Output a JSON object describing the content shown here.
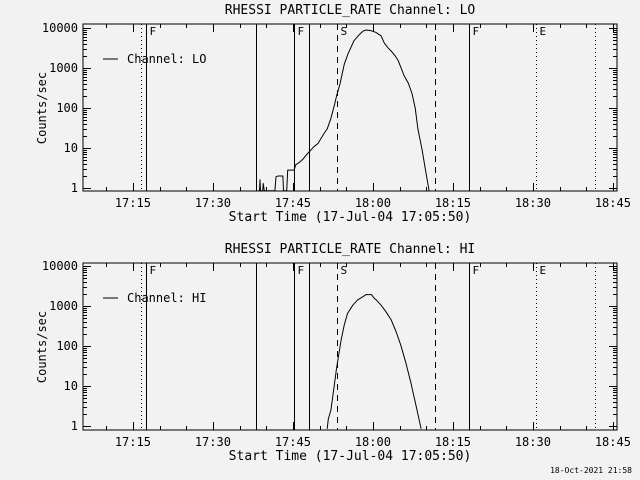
{
  "window": {
    "background_color": "#f2f2f2",
    "foreground_color": "#000000"
  },
  "footer": {
    "datestamp": "18-Oct-2021 21:58"
  },
  "chart_data": [
    {
      "type": "line",
      "title": "RHESSI PARTICLE_RATE Channel: LO",
      "xlabel": "Start Time (17-Jul-04 17:05:50)",
      "ylabel": "Counts/sec",
      "legend": {
        "label": "Channel: LO",
        "position": "upper-left"
      },
      "x_axis": {
        "start_time": "17-Jul-04 17:05:50",
        "range_minutes": [
          0,
          100
        ],
        "major_ticks": [
          {
            "t": 9.1667,
            "label": "17:15"
          },
          {
            "t": 24.1667,
            "label": "17:30"
          },
          {
            "t": 39.1667,
            "label": "17:45"
          },
          {
            "t": 54.1667,
            "label": "18:00"
          },
          {
            "t": 69.1667,
            "label": "18:15"
          },
          {
            "t": 84.1667,
            "label": "18:30"
          },
          {
            "t": 99.1667,
            "label": "18:45"
          }
        ],
        "minor_tick_step_minutes": 5
      },
      "y_axis": {
        "scale": "log",
        "tick_labels": [
          "1",
          "10",
          "100",
          "1000",
          "10000"
        ],
        "tick_values": [
          1,
          10,
          100,
          1000,
          10000
        ],
        "ylim": [
          0.85,
          12600
        ]
      },
      "event_lines": [
        {
          "t": 10.6,
          "style": "dotted",
          "label": ""
        },
        {
          "t": 11.6,
          "style": "solid",
          "label": "F"
        },
        {
          "t": 32.3,
          "style": "solid",
          "label": ""
        },
        {
          "t": 39.4,
          "style": "solid",
          "label": "F"
        },
        {
          "t": 42.2,
          "style": "solid",
          "label": ""
        },
        {
          "t": 47.4,
          "style": "dashed",
          "label": "S"
        },
        {
          "t": 65.8,
          "style": "dashed",
          "label": ""
        },
        {
          "t": 72.2,
          "style": "solid",
          "label": "F"
        },
        {
          "t": 84.8,
          "style": "dotted",
          "label": "E"
        },
        {
          "t": 95.9,
          "style": "dotted",
          "label": ""
        }
      ],
      "series": [
        {
          "name": "Channel: LO",
          "points_t_min_vs_counts": [
            [
              32.7,
              0.85
            ],
            [
              32.9,
              0.85
            ],
            [
              33.0,
              1.6
            ],
            [
              33.1,
              0.85
            ],
            [
              33.5,
              0.85
            ],
            [
              33.6,
              1.3
            ],
            [
              33.8,
              0.85
            ],
            [
              35.8,
              0.85
            ],
            [
              36.0,
              1.9
            ],
            [
              36.4,
              2.0
            ],
            [
              37.3,
              2.0
            ],
            [
              37.4,
              0.85
            ],
            [
              38.0,
              0.85
            ],
            [
              38.2,
              2.8
            ],
            [
              39.4,
              2.8
            ],
            [
              39.7,
              3.8
            ],
            [
              40.3,
              4.3
            ],
            [
              41.0,
              5.2
            ],
            [
              41.6,
              6.5
            ],
            [
              42.2,
              8.0
            ],
            [
              43.1,
              10.8
            ],
            [
              43.9,
              13
            ],
            [
              44.4,
              17
            ],
            [
              45.0,
              23
            ],
            [
              45.6,
              30
            ],
            [
              46.3,
              55
            ],
            [
              46.9,
              110
            ],
            [
              47.4,
              210
            ],
            [
              48.0,
              400
            ],
            [
              48.8,
              1250
            ],
            [
              49.5,
              2250
            ],
            [
              50.6,
              4800
            ],
            [
              51.6,
              6800
            ],
            [
              52.3,
              8300
            ],
            [
              52.9,
              8900
            ],
            [
              53.8,
              8600
            ],
            [
              54.7,
              7800
            ],
            [
              55.7,
              6400
            ],
            [
              56.3,
              4200
            ],
            [
              57.0,
              3200
            ],
            [
              57.6,
              2650
            ],
            [
              58.3,
              2050
            ],
            [
              58.9,
              1550
            ],
            [
              59.4,
              1050
            ],
            [
              60.0,
              650
            ],
            [
              60.8,
              420
            ],
            [
              61.5,
              230
            ],
            [
              62.1,
              100
            ],
            [
              62.6,
              30
            ],
            [
              63.4,
              9
            ],
            [
              64.0,
              3
            ],
            [
              64.7,
              0.85
            ]
          ]
        }
      ]
    },
    {
      "type": "line",
      "title": "RHESSI PARTICLE_RATE Channel: HI",
      "xlabel": "Start Time (17-Jul-04 17:05:50)",
      "ylabel": "Counts/sec",
      "legend": {
        "label": "Channel: HI",
        "position": "upper-left"
      },
      "x_axis": {
        "start_time": "17-Jul-04 17:05:50",
        "range_minutes": [
          0,
          100
        ],
        "major_ticks": [
          {
            "t": 9.1667,
            "label": "17:15"
          },
          {
            "t": 24.1667,
            "label": "17:30"
          },
          {
            "t": 39.1667,
            "label": "17:45"
          },
          {
            "t": 54.1667,
            "label": "18:00"
          },
          {
            "t": 69.1667,
            "label": "18:15"
          },
          {
            "t": 84.1667,
            "label": "18:30"
          },
          {
            "t": 99.1667,
            "label": "18:45"
          }
        ],
        "minor_tick_step_minutes": 5
      },
      "y_axis": {
        "scale": "log",
        "tick_labels": [
          "1",
          "10",
          "100",
          "1000",
          "10000"
        ],
        "tick_values": [
          1,
          10,
          100,
          1000,
          10000
        ],
        "ylim": [
          0.85,
          12600
        ]
      },
      "event_lines": [
        {
          "t": 10.6,
          "style": "dotted",
          "label": ""
        },
        {
          "t": 11.6,
          "style": "solid",
          "label": "F"
        },
        {
          "t": 32.3,
          "style": "solid",
          "label": ""
        },
        {
          "t": 39.4,
          "style": "solid",
          "label": "F"
        },
        {
          "t": 42.2,
          "style": "solid",
          "label": ""
        },
        {
          "t": 47.4,
          "style": "dashed",
          "label": "S"
        },
        {
          "t": 65.8,
          "style": "dashed",
          "label": ""
        },
        {
          "t": 72.2,
          "style": "solid",
          "label": "F"
        },
        {
          "t": 84.8,
          "style": "dotted",
          "label": "E"
        },
        {
          "t": 95.9,
          "style": "dotted",
          "label": ""
        }
      ],
      "series": [
        {
          "name": "Channel: HI",
          "points_t_min_vs_counts": [
            [
              45.6,
              0.85
            ],
            [
              45.8,
              1.5
            ],
            [
              46.3,
              2.5
            ],
            [
              46.9,
              9.6
            ],
            [
              47.3,
              25
            ],
            [
              47.6,
              45
            ],
            [
              48.2,
              140
            ],
            [
              48.8,
              340
            ],
            [
              49.4,
              650
            ],
            [
              50.4,
              1050
            ],
            [
              51.3,
              1420
            ],
            [
              52.3,
              1710
            ],
            [
              52.9,
              1930
            ],
            [
              53.9,
              1930
            ],
            [
              54.2,
              1700
            ],
            [
              54.5,
              1520
            ],
            [
              54.8,
              1420
            ],
            [
              55.7,
              1050
            ],
            [
              56.6,
              720
            ],
            [
              57.6,
              450
            ],
            [
              58.5,
              230
            ],
            [
              59.4,
              105
            ],
            [
              60.4,
              36
            ],
            [
              61.3,
              12
            ],
            [
              62.3,
              3
            ],
            [
              63.2,
              0.85
            ]
          ]
        }
      ]
    }
  ]
}
